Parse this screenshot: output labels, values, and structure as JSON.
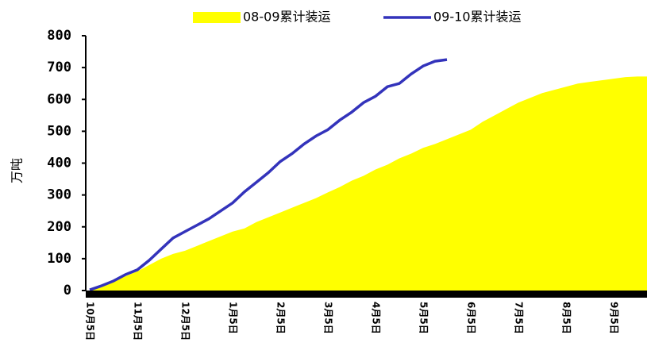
{
  "chart_data": {
    "type": "area-line",
    "y_label": "万吨",
    "categories": [
      "10月5日",
      null,
      null,
      null,
      "11月5日",
      null,
      null,
      null,
      "12月5日",
      null,
      null,
      null,
      "1月5日",
      null,
      null,
      null,
      "2月5日",
      null,
      null,
      null,
      "3月5日",
      null,
      null,
      null,
      "4月5日",
      null,
      null,
      null,
      "5月5日",
      null,
      null,
      null,
      "6月5日",
      null,
      null,
      null,
      "7月5日",
      null,
      null,
      null,
      "8月5日",
      null,
      null,
      null,
      "9月5日",
      null,
      null
    ],
    "series": [
      {
        "name": "08-09累计装运",
        "color": "#ffff00",
        "kind": "area",
        "values": [
          0,
          15,
          30,
          45,
          60,
          80,
          100,
          115,
          125,
          140,
          155,
          170,
          185,
          195,
          215,
          230,
          245,
          260,
          275,
          290,
          308,
          325,
          345,
          360,
          380,
          395,
          415,
          430,
          448,
          460,
          475,
          490,
          505,
          530,
          550,
          570,
          590,
          605,
          620,
          630,
          640,
          650,
          655,
          660,
          665,
          670,
          672
        ]
      },
      {
        "name": "09-10累计装运",
        "color": "#3333bb",
        "kind": "line",
        "values": [
          2,
          15,
          30,
          50,
          65,
          95,
          130,
          165,
          185,
          205,
          225,
          250,
          275,
          310,
          340,
          370,
          405,
          430,
          460,
          485,
          505,
          535,
          560,
          590,
          610,
          640,
          650,
          680,
          705,
          720,
          725,
          null,
          null,
          null,
          null,
          null,
          null,
          null,
          null,
          null,
          null,
          null,
          null,
          null,
          null,
          null,
          null
        ]
      }
    ],
    "ylim": [
      0,
      800
    ],
    "yticks": [
      0,
      100,
      200,
      300,
      400,
      500,
      600,
      700,
      800
    ],
    "legend": "top"
  }
}
